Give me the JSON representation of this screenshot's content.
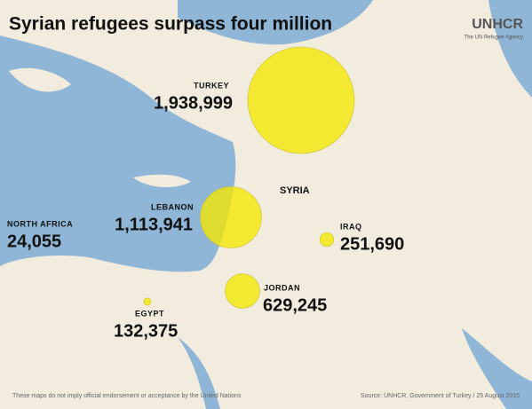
{
  "title": "Syrian refugees surpass four million",
  "logo": {
    "name": "UNHCR",
    "tagline": "The UN Refugee Agency"
  },
  "map_label": "SYRIA",
  "countries": [
    {
      "name": "TURKEY",
      "value": 1938999,
      "value_label": "1,938,999"
    },
    {
      "name": "LEBANON",
      "value": 1113941,
      "value_label": "1,113,941"
    },
    {
      "name": "JORDAN",
      "value": 629245,
      "value_label": "629,245"
    },
    {
      "name": "IRAQ",
      "value": 251690,
      "value_label": "251,690"
    },
    {
      "name": "EGYPT",
      "value": 132375,
      "value_label": "132,375"
    },
    {
      "name": "NORTH AFRICA",
      "value": 24055,
      "value_label": "24,055"
    }
  ],
  "disclaimer": "These maps do not imply official endorsement or acceptance by the United Nations",
  "source": "Source: UNHCR, Government of Turkey / 25 August 2015"
}
